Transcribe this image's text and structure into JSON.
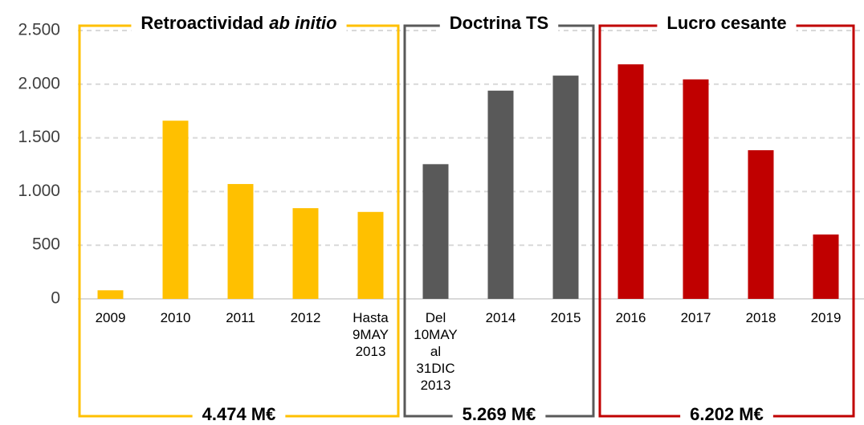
{
  "chart_data": {
    "type": "bar",
    "ylim": [
      0,
      2500
    ],
    "yticks": [
      0,
      500,
      {
        "value": 1000,
        "label": "1.000"
      },
      {
        "value": 1500,
        "label": "1.500"
      },
      {
        "value": 2000,
        "label": "2.000"
      },
      {
        "value": 2500,
        "label": "2.500"
      }
    ],
    "grid": true,
    "groups": [
      {
        "title_parts": [
          "Retroactividad",
          "ab initio"
        ],
        "total": "4.474 M€",
        "color": "#FFC000",
        "categories": [
          "2009",
          "2010",
          "2011",
          "2012",
          "Hasta 9MAY 2013"
        ],
        "values": [
          80,
          1660,
          1070,
          845,
          810
        ]
      },
      {
        "title_parts": [
          "Doctrina TS"
        ],
        "total": "5.269 M€",
        "color": "#595959",
        "categories": [
          "Del 10MAY al 31DIC 2013",
          "2014",
          "2015"
        ],
        "values": [
          1255,
          1940,
          2080
        ]
      },
      {
        "title_parts": [
          "Lucro cesante"
        ],
        "total": "6.202 M€",
        "color": "#C00000",
        "categories": [
          "2016",
          "2017",
          "2018",
          "2019"
        ],
        "values": [
          2185,
          2045,
          1385,
          600
        ]
      }
    ]
  }
}
